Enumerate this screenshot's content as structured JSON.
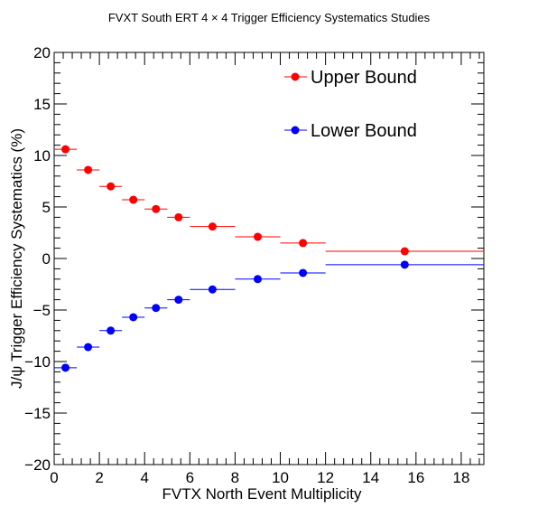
{
  "chart_data": {
    "type": "scatter",
    "title": "FVXT South ERT 4 × 4 Trigger Efficiency Systematics Studies",
    "xlabel": "FVTX North Event Multiplicity",
    "ylabel": "J/ψ Trigger Efficiency Systematics (%)",
    "xlim": [
      0,
      19
    ],
    "ylim": [
      -20,
      20
    ],
    "x_ticks": [
      "0",
      "2",
      "4",
      "6",
      "8",
      "10",
      "12",
      "14",
      "16",
      "18"
    ],
    "y_ticks": [
      "−20",
      "−15",
      "−10",
      "−5",
      "0",
      "5",
      "10",
      "15",
      "20"
    ],
    "legend_position": "top-right",
    "series": [
      {
        "name": "Upper Bound",
        "color": "#ff0000",
        "points": [
          {
            "x": 0.5,
            "xlo": 0,
            "xhi": 1,
            "y": 10.6
          },
          {
            "x": 1.5,
            "xlo": 1,
            "xhi": 2,
            "y": 8.6
          },
          {
            "x": 2.5,
            "xlo": 2,
            "xhi": 3,
            "y": 7.0
          },
          {
            "x": 3.5,
            "xlo": 3,
            "xhi": 4,
            "y": 5.7
          },
          {
            "x": 4.5,
            "xlo": 4,
            "xhi": 5,
            "y": 4.8
          },
          {
            "x": 5.5,
            "xlo": 5,
            "xhi": 6,
            "y": 4.0
          },
          {
            "x": 7.0,
            "xlo": 6,
            "xhi": 8,
            "y": 3.1
          },
          {
            "x": 9.0,
            "xlo": 8,
            "xhi": 10,
            "y": 2.1
          },
          {
            "x": 11.0,
            "xlo": 10,
            "xhi": 12,
            "y": 1.5
          },
          {
            "x": 15.5,
            "xlo": 12,
            "xhi": 19,
            "y": 0.7
          }
        ]
      },
      {
        "name": "Lower Bound",
        "color": "#0000ff",
        "points": [
          {
            "x": 0.5,
            "xlo": 0,
            "xhi": 1,
            "y": -10.6
          },
          {
            "x": 1.5,
            "xlo": 1,
            "xhi": 2,
            "y": -8.6
          },
          {
            "x": 2.5,
            "xlo": 2,
            "xhi": 3,
            "y": -7.0
          },
          {
            "x": 3.5,
            "xlo": 3,
            "xhi": 4,
            "y": -5.7
          },
          {
            "x": 4.5,
            "xlo": 4,
            "xhi": 5,
            "y": -4.8
          },
          {
            "x": 5.5,
            "xlo": 5,
            "xhi": 6,
            "y": -4.0
          },
          {
            "x": 7.0,
            "xlo": 6,
            "xhi": 8,
            "y": -3.0
          },
          {
            "x": 9.0,
            "xlo": 8,
            "xhi": 10,
            "y": -2.0
          },
          {
            "x": 11.0,
            "xlo": 10,
            "xhi": 12,
            "y": -1.4
          },
          {
            "x": 15.5,
            "xlo": 12,
            "xhi": 19,
            "y": -0.6
          }
        ]
      }
    ]
  }
}
